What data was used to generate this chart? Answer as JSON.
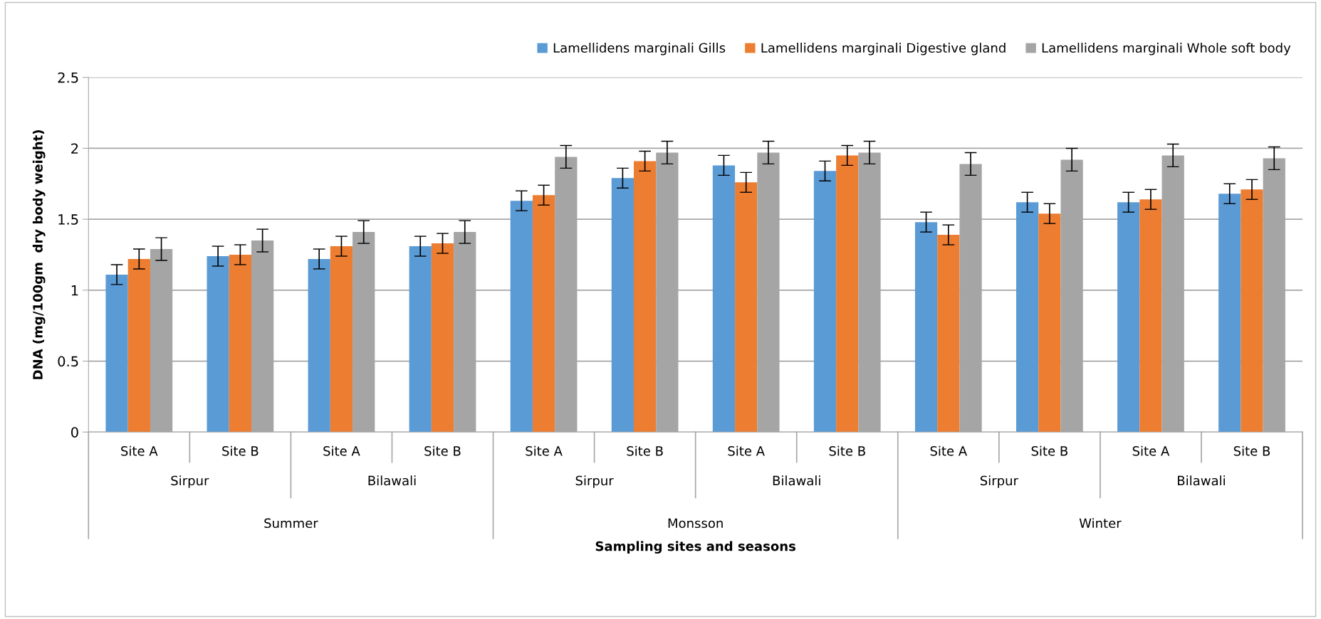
{
  "chart_data": {
    "type": "bar",
    "ylabel": "DNA (mg/100gm  dry body weight)",
    "categories": [
      "Site A",
      "Site B",
      "Site A",
      "Site B",
      "Site A",
      "Site B",
      "Site A",
      "Site B",
      "Site A",
      "Site B",
      "Site A",
      "Site B"
    ],
    "series": [
      {
        "name": "Lamellidens marginali Gills",
        "color": "#5b9bd5",
        "values": [
          1.11,
          1.24,
          1.22,
          1.31,
          1.63,
          1.79,
          1.88,
          1.84,
          1.48,
          1.62,
          1.62,
          1.68
        ],
        "errors": [
          0.07,
          0.07,
          0.07,
          0.07,
          0.07,
          0.07,
          0.07,
          0.07,
          0.07,
          0.07,
          0.07,
          0.07
        ]
      },
      {
        "name": "Lamellidens marginali Digestive gland",
        "color": "#ed7d31",
        "values": [
          1.22,
          1.25,
          1.31,
          1.33,
          1.67,
          1.91,
          1.76,
          1.95,
          1.39,
          1.54,
          1.64,
          1.71
        ],
        "errors": [
          0.07,
          0.07,
          0.07,
          0.07,
          0.07,
          0.07,
          0.07,
          0.07,
          0.07,
          0.07,
          0.07,
          0.07
        ]
      },
      {
        "name": "Lamellidens marginali Whole soft body",
        "color": "#a5a5a5",
        "values": [
          1.29,
          1.35,
          1.41,
          1.41,
          1.94,
          1.97,
          1.97,
          1.97,
          1.89,
          1.92,
          1.95,
          1.93
        ],
        "errors": [
          0.08,
          0.08,
          0.08,
          0.08,
          0.08,
          0.08,
          0.08,
          0.08,
          0.08,
          0.08,
          0.08,
          0.08
        ]
      }
    ],
    "ylim": [
      0,
      2.5
    ],
    "yticks": [
      0,
      0.5,
      1,
      1.5,
      2,
      2.5
    ],
    "grid": "y",
    "legend": "top right",
    "annotations": [
      "Sirpur",
      "Bilawali",
      "Sirpur",
      "Bilawali",
      "Sirpur",
      "Bilawali",
      "Summer",
      "Monsson",
      "Winter",
      "Sampling sites and seasons"
    ]
  }
}
